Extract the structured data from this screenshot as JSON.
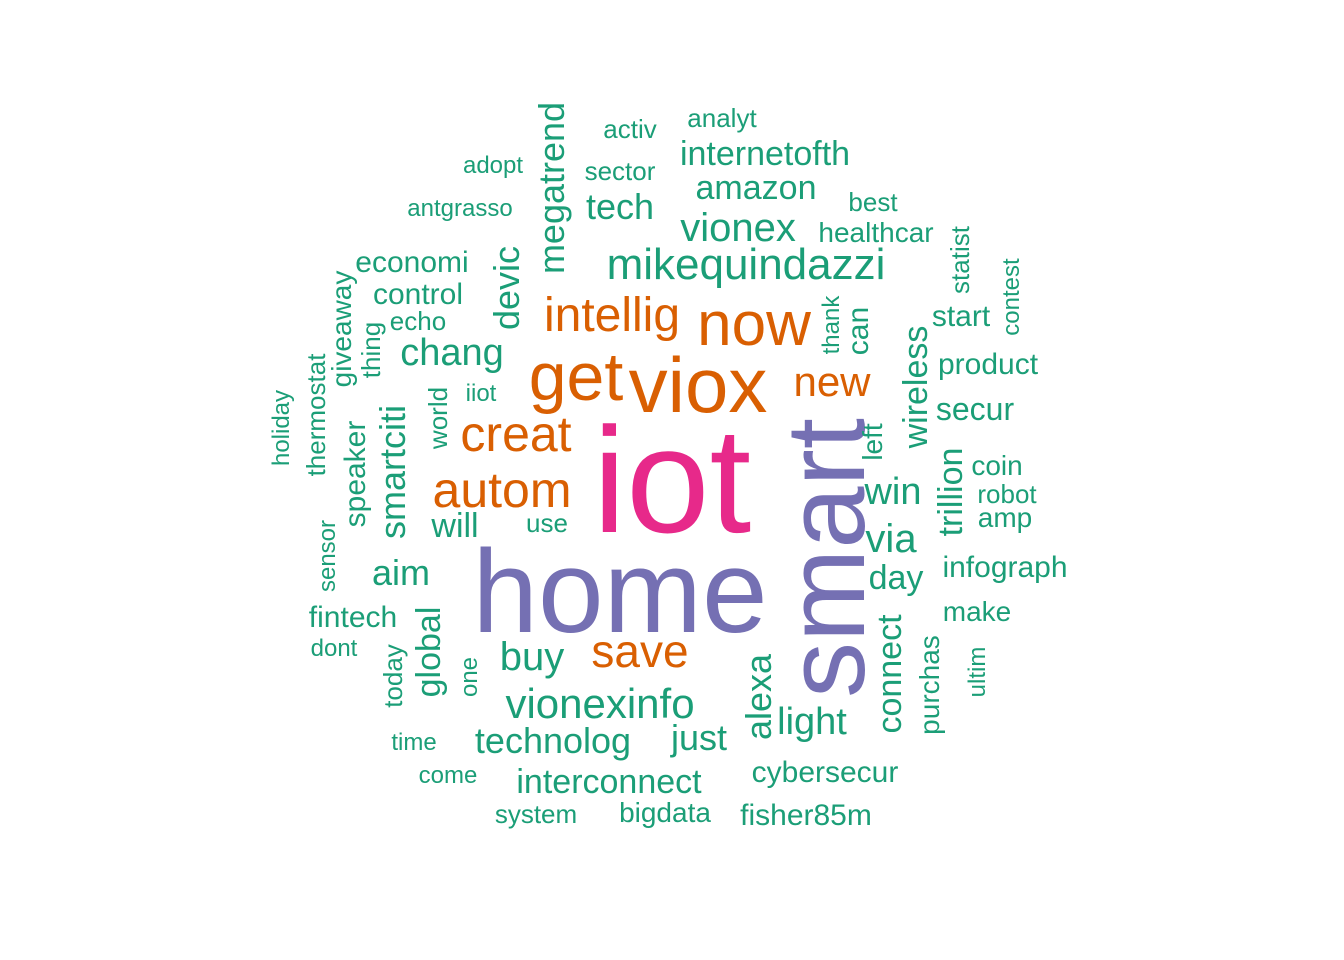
{
  "words": {
    "iot": "iot",
    "home": "home",
    "smart": "smart",
    "viox": "viox",
    "get": "get",
    "now": "now",
    "intellig": "intellig",
    "creat": "creat",
    "autom": "autom",
    "save": "save",
    "new": "new",
    "mikequindazzi": "mikequindazzi",
    "vionex": "vionex",
    "vionexinfo": "vionexinfo",
    "chang": "chang",
    "buy": "buy",
    "technolog": "technolog",
    "interconnect": "interconnect",
    "amazon": "amazon",
    "internetofth": "internetofth",
    "tech": "tech",
    "megatrend": "megatrend",
    "devic": "devic",
    "economi": "economi",
    "control": "control",
    "echo": "echo",
    "smartciti": "smartciti",
    "aim": "aim",
    "will": "will",
    "use": "use",
    "global": "global",
    "just": "just",
    "alexa": "alexa",
    "light": "light",
    "cybersecur": "cybersecur",
    "fisher85m": "fisher85m",
    "bigdata": "bigdata",
    "system": "system",
    "come": "come",
    "time": "time",
    "today": "today",
    "one": "one",
    "fintech": "fintech",
    "dont": "dont",
    "sensor": "sensor",
    "speaker": "speaker",
    "thermostat": "thermostat",
    "holiday": "holiday",
    "giveaway": "giveaway",
    "thing": "thing",
    "world": "world",
    "iiot": "iiot",
    "antgrasso": "antgrasso",
    "adopt": "adopt",
    "sector": "sector",
    "activ": "activ",
    "analyt": "analyt",
    "best": "best",
    "healthcar": "healthcar",
    "statist": "statist",
    "contest": "contest",
    "start": "start",
    "product": "product",
    "secur": "secur",
    "coin": "coin",
    "robot": "robot",
    "amp": "amp",
    "infograph": "infograph",
    "make": "make",
    "ultim": "ultim",
    "purchas": "purchas",
    "connect": "connect",
    "day": "day",
    "via": "via",
    "win": "win",
    "trillion": "trillion",
    "wireless": "wireless",
    "left": "left",
    "can": "can",
    "thank": "thank"
  },
  "colors": {
    "pink": "#E7298A",
    "purple": "#7570B3",
    "orange": "#D95F02",
    "green": "#1B9E77"
  }
}
